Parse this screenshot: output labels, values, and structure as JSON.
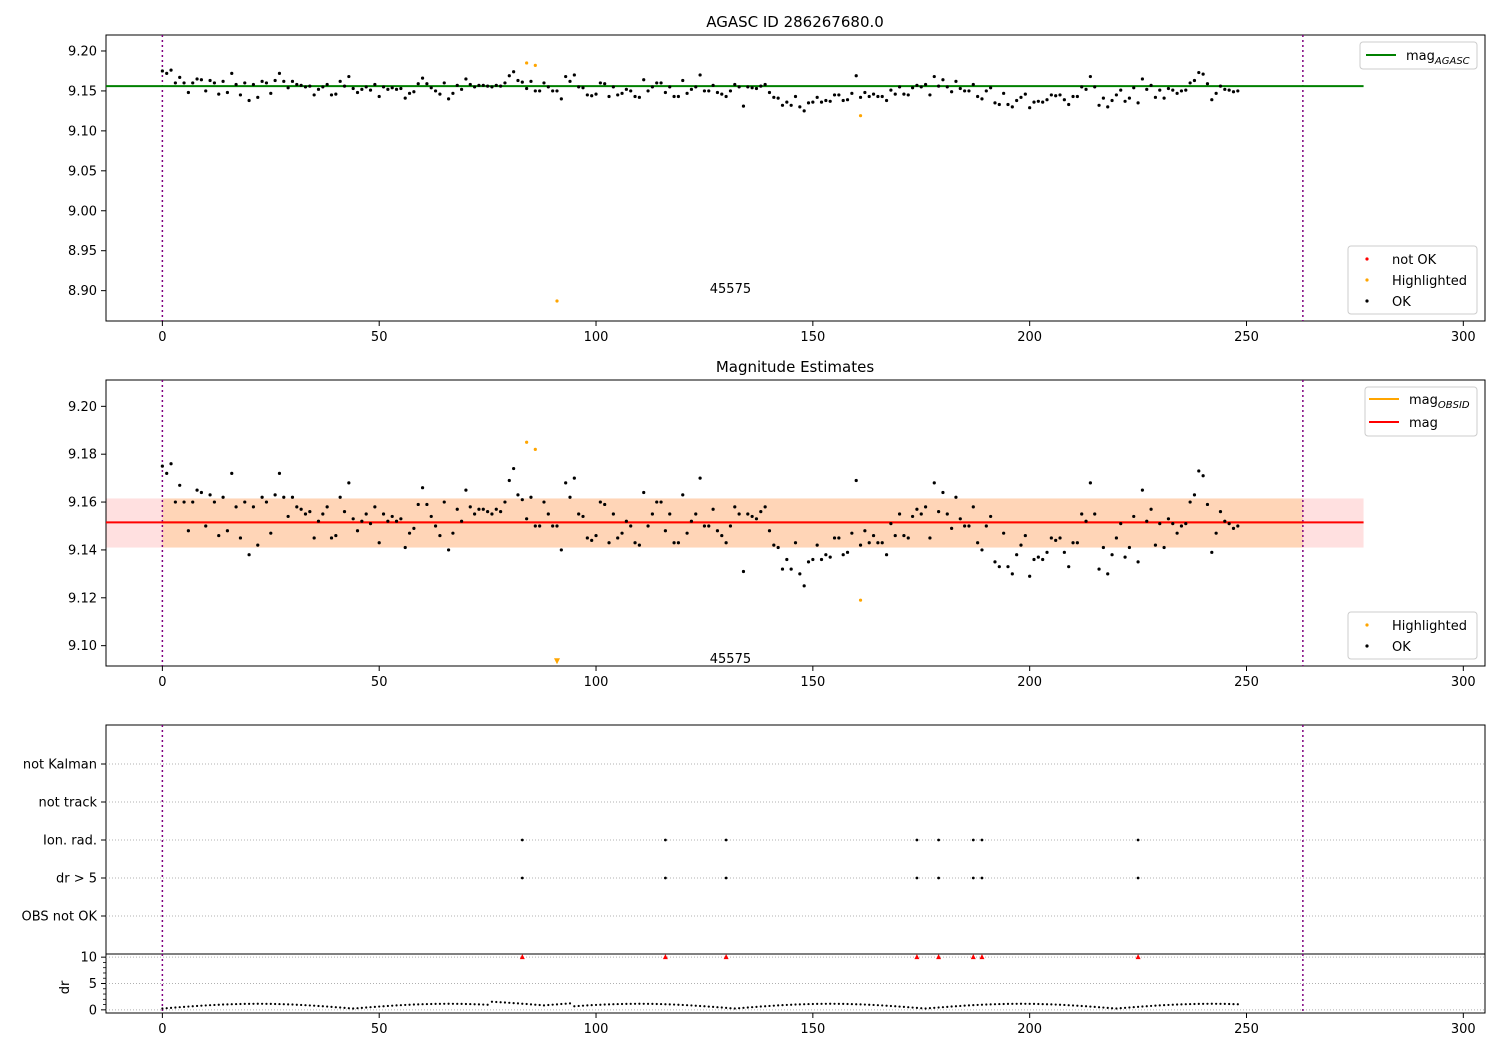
{
  "chart_data": [
    {
      "type": "scatter",
      "title": "AGASC ID 286267680.0",
      "x_range": [
        -13,
        305
      ],
      "y_range": [
        8.862,
        9.22
      ],
      "x_ticks": [
        0,
        50,
        100,
        150,
        200,
        250,
        300
      ],
      "y_ticks": [
        8.9,
        8.95,
        9.0,
        9.05,
        9.1,
        9.15,
        9.2
      ],
      "y_tick_labels": [
        "8.90",
        "8.95",
        "9.00",
        "9.05",
        "9.10",
        "9.15",
        "9.20"
      ],
      "vlines": [
        0,
        263
      ],
      "hline": {
        "name": "mag",
        "subscript": "AGASC",
        "y": 9.156,
        "x_range": [
          -13,
          277
        ],
        "color": "#008000"
      },
      "obsid_label": {
        "text": "45575",
        "x": 131,
        "y": 8.886
      },
      "legend_lines": [
        {
          "name": "mag",
          "subscript": "AGASC",
          "color": "#008000"
        }
      ],
      "legend_markers": [
        {
          "name": "not OK",
          "color": "#ff0000"
        },
        {
          "name": "Highlighted",
          "color": "#ffa500"
        },
        {
          "name": "OK",
          "color": "#000000"
        }
      ],
      "highlighted": [
        [
          84,
          9.185
        ],
        [
          86,
          9.182
        ],
        [
          91,
          8.887
        ],
        [
          161,
          9.119
        ]
      ],
      "series_ok_y": [
        9.175,
        9.172,
        9.176,
        9.16,
        9.167,
        9.16,
        9.148,
        9.16,
        9.165,
        9.164,
        9.15,
        9.163,
        9.16,
        9.146,
        9.162,
        9.148,
        9.172,
        9.158,
        9.145,
        9.16,
        9.138,
        9.158,
        9.142,
        9.162,
        9.16,
        9.147,
        9.163,
        9.172,
        9.162,
        9.154,
        9.162,
        9.158,
        9.157,
        9.155,
        9.156,
        9.145,
        9.152,
        9.155,
        9.158,
        9.145,
        9.146,
        9.162,
        9.156,
        9.168,
        9.153,
        9.148,
        9.152,
        9.155,
        9.151,
        9.158,
        9.143,
        9.155,
        9.152,
        9.154,
        9.152,
        9.153,
        9.141,
        9.147,
        9.149,
        9.159,
        9.166,
        9.159,
        9.154,
        9.15,
        9.146,
        9.16,
        9.14,
        9.147,
        9.157,
        9.152,
        9.165,
        9.158,
        9.155,
        9.157,
        9.157,
        9.156,
        9.155,
        9.157,
        9.156,
        9.16,
        9.169,
        9.174,
        9.163,
        9.161,
        9.153,
        9.162,
        9.15,
        9.15,
        9.16,
        9.155,
        9.15,
        9.15,
        9.14,
        9.168,
        9.162,
        9.17,
        9.155,
        9.154,
        9.145,
        9.144,
        9.146,
        9.16,
        9.159,
        9.143,
        9.155,
        9.145,
        9.147,
        9.152,
        9.15,
        9.143,
        9.142,
        9.164,
        9.15,
        9.155,
        9.16,
        9.16,
        9.148,
        9.155,
        9.143,
        9.143,
        9.163,
        9.147,
        9.152,
        9.155,
        9.17,
        9.15,
        9.15,
        9.157,
        9.148,
        9.146,
        9.143,
        9.15,
        9.158,
        9.155,
        9.131,
        9.155,
        9.154,
        9.153,
        9.156,
        9.158,
        9.148,
        9.142,
        9.141,
        9.132,
        9.136,
        9.132,
        9.143,
        9.13,
        9.125,
        9.135,
        9.136,
        9.142,
        9.136,
        9.138,
        9.137,
        9.145,
        9.145,
        9.138,
        9.139,
        9.147,
        9.169,
        9.142,
        9.148,
        9.143,
        9.146,
        9.143,
        9.143,
        9.138,
        9.151,
        9.146,
        9.155,
        9.146,
        9.145,
        9.154,
        9.157,
        9.155,
        9.158,
        9.145,
        9.168,
        9.156,
        9.164,
        9.155,
        9.149,
        9.162,
        9.153,
        9.15,
        9.15,
        9.158,
        9.143,
        9.14,
        9.15,
        9.154,
        9.135,
        9.133,
        9.147,
        9.133,
        9.13,
        9.138,
        9.142,
        9.146,
        9.129,
        9.136,
        9.137,
        9.136,
        9.139,
        9.145,
        9.144,
        9.145,
        9.139,
        9.133,
        9.143,
        9.143,
        9.155,
        9.152,
        9.168,
        9.155,
        9.132,
        9.141,
        9.13,
        9.138,
        9.145,
        9.151,
        9.137,
        9.141,
        9.154,
        9.135,
        9.165,
        9.152,
        9.157,
        9.142,
        9.151,
        9.141,
        9.153,
        9.151,
        9.147,
        9.15,
        9.151,
        9.16,
        9.163,
        9.173,
        9.171,
        9.159,
        9.139,
        9.147,
        9.156,
        9.152,
        9.151,
        9.149,
        9.15
      ]
    },
    {
      "type": "scatter",
      "title": "Magnitude Estimates",
      "x_range": [
        -13,
        305
      ],
      "y_range": [
        9.0915,
        9.211
      ],
      "x_ticks": [
        0,
        50,
        100,
        150,
        200,
        250,
        300
      ],
      "y_ticks": [
        9.1,
        9.12,
        9.14,
        9.16,
        9.18,
        9.2
      ],
      "y_tick_labels": [
        "9.10",
        "9.12",
        "9.14",
        "9.16",
        "9.18",
        "9.20"
      ],
      "vlines": [
        0,
        263
      ],
      "mag_line": {
        "name": "mag",
        "y": 9.1515,
        "x_range": [
          -13,
          277
        ],
        "color": "#ff0000",
        "band": [
          9.141,
          9.1615
        ]
      },
      "mag_obsid": {
        "name": "mag",
        "subscript": "OBSID",
        "y": 9.1515,
        "x_range": [
          0,
          263
        ],
        "color": "#ffa500",
        "band": [
          9.141,
          9.1615
        ]
      },
      "obsid_label": {
        "text": "45575",
        "x": 131,
        "y": 9.0945
      },
      "legend_lines": [
        {
          "name": "mag",
          "subscript": "OBSID",
          "color": "#ffa500"
        },
        {
          "name": "mag",
          "subscript": "",
          "color": "#ff0000"
        }
      ],
      "legend_markers": [
        {
          "name": "Highlighted",
          "color": "#ffa500"
        },
        {
          "name": "OK",
          "color": "#000000"
        }
      ],
      "highlighted": [
        [
          84,
          9.185
        ],
        [
          86,
          9.182
        ],
        [
          161,
          9.119
        ]
      ],
      "highlighted_offscale": [
        [
          91,
          9.0935
        ]
      ],
      "series_ok_ref": "same points as the AGASC panel"
    },
    {
      "type": "scatter",
      "title": "",
      "x_range": [
        -13,
        305
      ],
      "x_ticks": [
        0,
        50,
        100,
        150,
        200,
        250,
        300
      ],
      "vlines": [
        0,
        263
      ],
      "flag_labels": [
        "not Kalman",
        "not track",
        "Ion. rad.",
        "dr > 5",
        "OBS not OK"
      ],
      "flags": {
        "Ion. rad.": [
          83,
          116,
          130,
          174,
          179,
          187,
          189,
          225
        ],
        "dr > 5": [
          83,
          116,
          130,
          174,
          179,
          187,
          189,
          225
        ]
      },
      "dr": {
        "ylabel": "dr",
        "y_ticks": [
          0,
          5,
          10
        ],
        "y_range": [
          -0.6,
          10.6
        ],
        "clipped_points": [
          83,
          116,
          130,
          174,
          179,
          187,
          189,
          225
        ],
        "clip_color": "#ff0000"
      }
    }
  ]
}
